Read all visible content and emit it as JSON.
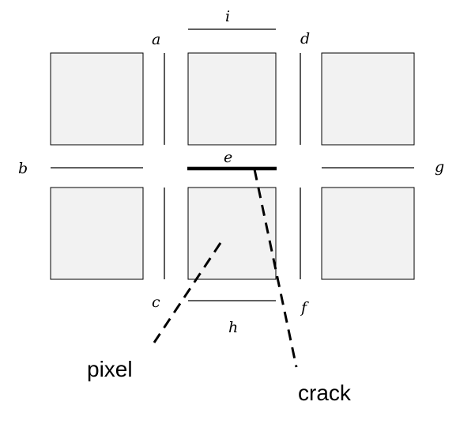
{
  "labels": {
    "a": "a",
    "b": "b",
    "c": "c",
    "d": "d",
    "e": "e",
    "f": "f",
    "g": "g",
    "h": "h",
    "i": "i"
  },
  "captions": {
    "pixel": "pixel",
    "crack": "crack"
  }
}
